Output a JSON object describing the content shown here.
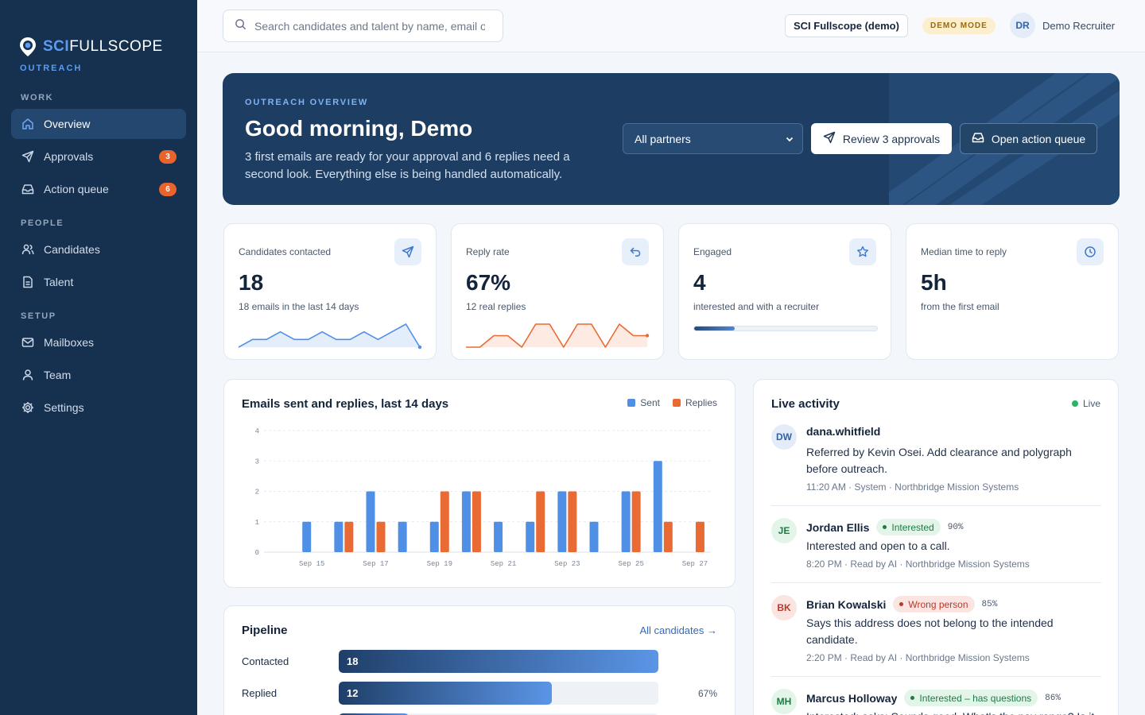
{
  "brand": {
    "name_sci": "SCI",
    "name_rest": "FULLSCOPE",
    "product": "OUTREACH"
  },
  "sidebar": {
    "sections": [
      {
        "label": "WORK",
        "items": [
          {
            "label": "Overview",
            "icon": "home-icon",
            "active": true
          },
          {
            "label": "Approvals",
            "icon": "send-icon",
            "badge": "3"
          },
          {
            "label": "Action queue",
            "icon": "inbox-icon",
            "badge": "6"
          }
        ]
      },
      {
        "label": "PEOPLE",
        "items": [
          {
            "label": "Candidates",
            "icon": "users-icon"
          },
          {
            "label": "Talent",
            "icon": "document-icon"
          }
        ]
      },
      {
        "label": "SETUP",
        "items": [
          {
            "label": "Mailboxes",
            "icon": "mail-icon"
          },
          {
            "label": "Team",
            "icon": "user-icon"
          },
          {
            "label": "Settings",
            "icon": "gear-icon"
          }
        ]
      }
    ]
  },
  "topbar": {
    "search_placeholder": "Search candidates and talent by name, email or",
    "org": "SCI Fullscope (demo)",
    "mode_badge": "DEMO MODE",
    "user_initials": "DR",
    "user_name": "Demo Recruiter"
  },
  "hero": {
    "kicker": "OUTREACH OVERVIEW",
    "title": "Good morning, Demo",
    "subtitle": "3 first emails are ready for your approval and 6 replies need a second look. Everything else is being handled automatically.",
    "partner_select": "All partners",
    "review_button": "Review 3 approvals",
    "queue_button": "Open action queue"
  },
  "stats": [
    {
      "label": "Candidates contacted",
      "value": "18",
      "sub": "18 emails in the last 14 days",
      "icon": "send-icon",
      "sparkline": [
        0,
        1,
        1,
        2,
        1,
        1,
        2,
        1,
        1,
        2,
        1,
        2,
        3,
        0
      ]
    },
    {
      "label": "Reply rate",
      "value": "67%",
      "sub": "12 real replies",
      "icon": "reply-icon",
      "sparkline": [
        0,
        0,
        1,
        1,
        0,
        2,
        2,
        0,
        2,
        2,
        0,
        2,
        1,
        1
      ]
    },
    {
      "label": "Engaged",
      "value": "4",
      "sub": "interested and with a recruiter",
      "icon": "star-icon",
      "progress": 0.22
    },
    {
      "label": "Median time to reply",
      "value": "5h",
      "sub": "from the first email",
      "icon": "clock-icon"
    }
  ],
  "chart_data": {
    "type": "bar",
    "title": "Emails sent and replies, last 14 days",
    "categories": [
      "Sep 14",
      "Sep 15",
      "Sep 16",
      "Sep 17",
      "Sep 18",
      "Sep 19",
      "Sep 20",
      "Sep 21",
      "Sep 22",
      "Sep 23",
      "Sep 24",
      "Sep 25",
      "Sep 26",
      "Sep 27"
    ],
    "tick_labels": [
      "Sep 15",
      "Sep 17",
      "Sep 19",
      "Sep 21",
      "Sep 23",
      "Sep 25",
      "Sep 27"
    ],
    "series": [
      {
        "name": "Sent",
        "color": "#4f8fe6",
        "values": [
          0,
          1,
          1,
          2,
          1,
          1,
          2,
          1,
          1,
          2,
          1,
          2,
          3,
          0
        ]
      },
      {
        "name": "Replies",
        "color": "#ea6a33",
        "values": [
          0,
          0,
          1,
          1,
          0,
          2,
          2,
          0,
          2,
          2,
          0,
          2,
          1,
          1
        ]
      }
    ],
    "ylim": [
      0,
      4
    ],
    "yticks": [
      0,
      1,
      2,
      3,
      4
    ],
    "grid": true,
    "legend": "top-right"
  },
  "pipeline": {
    "title": "Pipeline",
    "link": "All candidates →",
    "rows": [
      {
        "label": "Contacted",
        "value": "18",
        "fraction": 1.0,
        "pct": ""
      },
      {
        "label": "Replied",
        "value": "12",
        "fraction": 0.667,
        "pct": "67%"
      }
    ]
  },
  "activity": {
    "title": "Live activity",
    "live_label": "Live",
    "items": [
      {
        "initials": "DW",
        "name": "dana.whitfield",
        "text": "Referred by Kevin Osei. Add clearance and polygraph before outreach.",
        "meta": "11:20 AM · System · Northbridge Mission Systems",
        "avatar_bg": "#e3ecf8",
        "avatar_fg": "#2f63a8"
      },
      {
        "initials": "JE",
        "name": "Jordan Ellis",
        "tag": "Interested",
        "tag_kind": "green",
        "score": "90%",
        "text": "Interested and open to a call.",
        "meta": "8:20 PM · Read by AI · Northbridge Mission Systems",
        "avatar_bg": "#e3f5e9",
        "avatar_fg": "#1f7a44"
      },
      {
        "initials": "BK",
        "name": "Brian Kowalski",
        "tag": "Wrong person",
        "tag_kind": "red",
        "score": "85%",
        "text": "Says this address does not belong to the intended candidate.",
        "meta": "2:20 PM · Read by AI · Northbridge Mission Systems",
        "avatar_bg": "#fbe5e2",
        "avatar_fg": "#b8392b"
      },
      {
        "initials": "MH",
        "name": "Marcus Holloway",
        "tag": "Interested – has questions",
        "tag_kind": "green",
        "score": "86%",
        "text": "Interested; asks: Sounds good. What's the pay range? Is it",
        "meta": "",
        "avatar_bg": "#e3f5e9",
        "avatar_fg": "#1f7a44"
      }
    ]
  }
}
